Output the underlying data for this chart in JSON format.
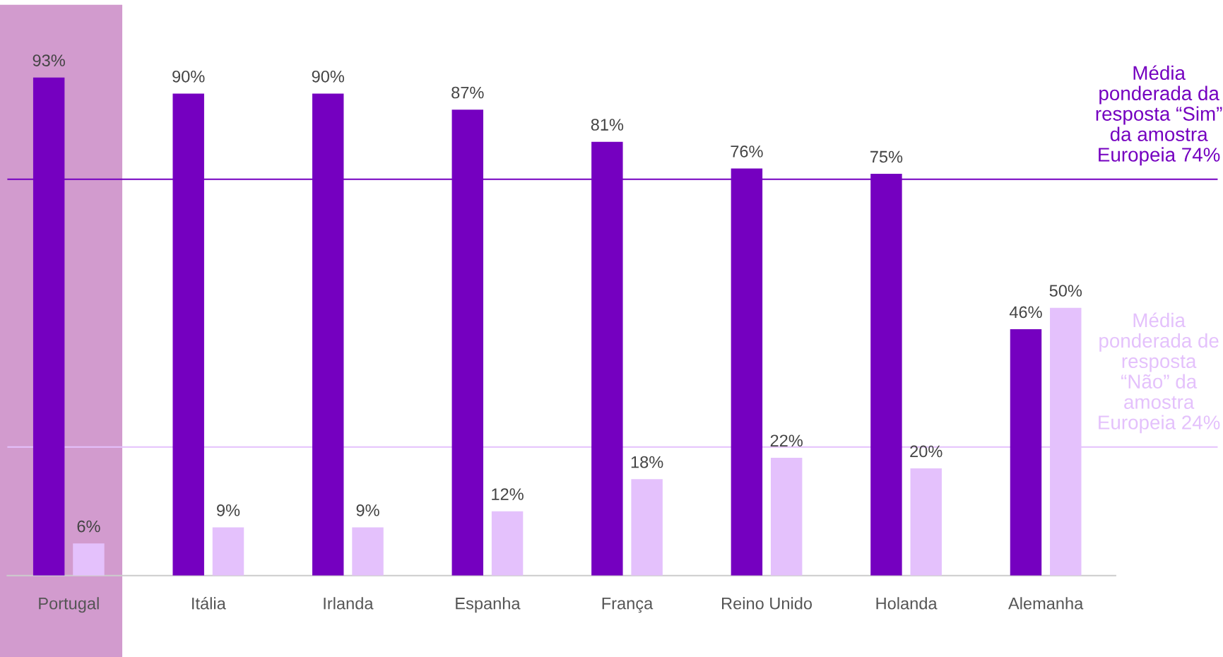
{
  "chart_data": {
    "type": "bar",
    "categories": [
      "Portugal",
      "Itália",
      "Irlanda",
      "Espanha",
      "França",
      "Reino Unido",
      "Holanda",
      "Alemanha"
    ],
    "series": [
      {
        "color": "#7500c0",
        "values": [
          93,
          90,
          90,
          87,
          81,
          76,
          75,
          46
        ],
        "value_labels": [
          "93%",
          "90%",
          "90%",
          "87%",
          "81%",
          "76%",
          "75%",
          "46%"
        ]
      },
      {
        "color": "#e4c1fc",
        "values": [
          6,
          9,
          9,
          12,
          18,
          22,
          20,
          50
        ],
        "value_labels": [
          "6%",
          "9%",
          "9%",
          "12%",
          "18%",
          "22%",
          "20%",
          "50%"
        ]
      }
    ],
    "ref_lines": [
      {
        "axis": "y",
        "value": 74,
        "label": "Média\nponderada da\nresposta “Sim”\nda amostra\nEuropeia 74%",
        "color": "#7500c0"
      },
      {
        "axis": "y",
        "value": 24,
        "label": "Média\nponderada de\nresposta\n“Não” da\namostra\nEuropeia 24%",
        "color": "#e4c1fc"
      }
    ],
    "bands": [
      {
        "axis": "x",
        "from": "Portugal",
        "to": "Portugal",
        "color": "#d29bce"
      }
    ],
    "grid": false,
    "legend": false
  }
}
